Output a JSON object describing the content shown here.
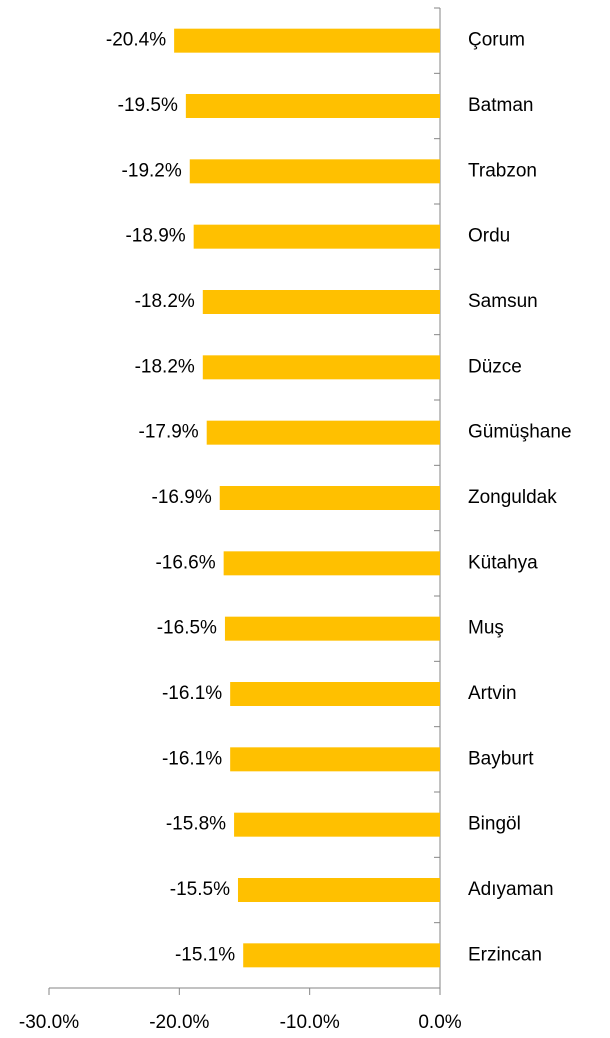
{
  "chart_data": {
    "type": "bar",
    "orientation": "horizontal",
    "categories": [
      "Çorum",
      "Batman",
      "Trabzon",
      "Ordu",
      "Samsun",
      "Düzce",
      "Gümüşhane",
      "Zonguldak",
      "Kütahya",
      "Muş",
      "Artvin",
      "Bayburt",
      "Bingöl",
      "Adıyaman",
      "Erzincan"
    ],
    "values": [
      -20.4,
      -19.5,
      -19.2,
      -18.9,
      -18.2,
      -18.2,
      -17.9,
      -16.9,
      -16.6,
      -16.5,
      -16.1,
      -16.1,
      -15.8,
      -15.5,
      -15.1
    ],
    "value_labels": [
      "-20.4%",
      "-19.5%",
      "-19.2%",
      "-18.9%",
      "-18.2%",
      "-18.2%",
      "-17.9%",
      "-16.9%",
      "-16.6%",
      "-16.5%",
      "-16.1%",
      "-16.1%",
      "-15.8%",
      "-15.5%",
      "-15.1%"
    ],
    "color": "#FFC000",
    "xlim": [
      -30,
      0
    ],
    "xticks": [
      {
        "value": -30,
        "label": "-30.0%"
      },
      {
        "value": -20,
        "label": "-20.0%"
      },
      {
        "value": -10,
        "label": "-10.0%"
      },
      {
        "value": 0,
        "label": "0.0%"
      }
    ],
    "grid": false
  }
}
